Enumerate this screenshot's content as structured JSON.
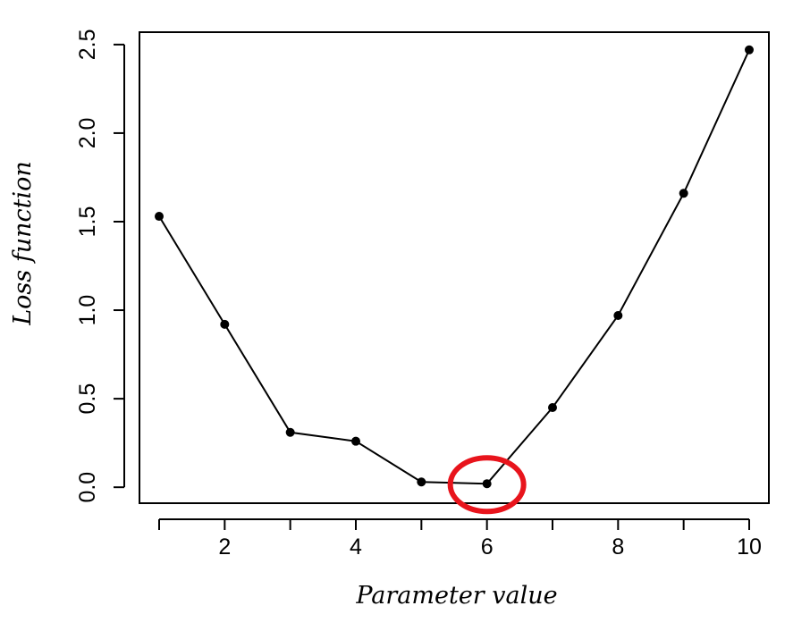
{
  "chart_data": {
    "type": "line",
    "title": "",
    "xlabel": "Parameter value",
    "ylabel": "Loss function",
    "x": [
      1,
      2,
      3,
      4,
      5,
      6,
      7,
      8,
      9,
      10
    ],
    "series": [
      {
        "values": [
          1.53,
          0.92,
          0.31,
          0.26,
          0.03,
          0.02,
          0.45,
          0.97,
          1.66,
          2.47
        ]
      }
    ],
    "xlim": [
      0.7,
      10.3
    ],
    "ylim": [
      -0.09,
      2.57
    ],
    "x_ticks": [
      2,
      4,
      6,
      8,
      10
    ],
    "x_tick_labels": [
      "2",
      "4",
      "6",
      "8",
      "10"
    ],
    "y_ticks": [
      0.0,
      0.5,
      1.0,
      1.5,
      2.0,
      2.5
    ],
    "y_tick_labels": [
      "0.0",
      "0.5",
      "1.0",
      "1.5",
      "2.0",
      "2.5"
    ],
    "grid": false,
    "line_color": "#000000",
    "marker_color": "#000000",
    "annotation": {
      "shape": "ellipse",
      "color": "#e8141c",
      "x": 6,
      "y": 0.02
    }
  }
}
